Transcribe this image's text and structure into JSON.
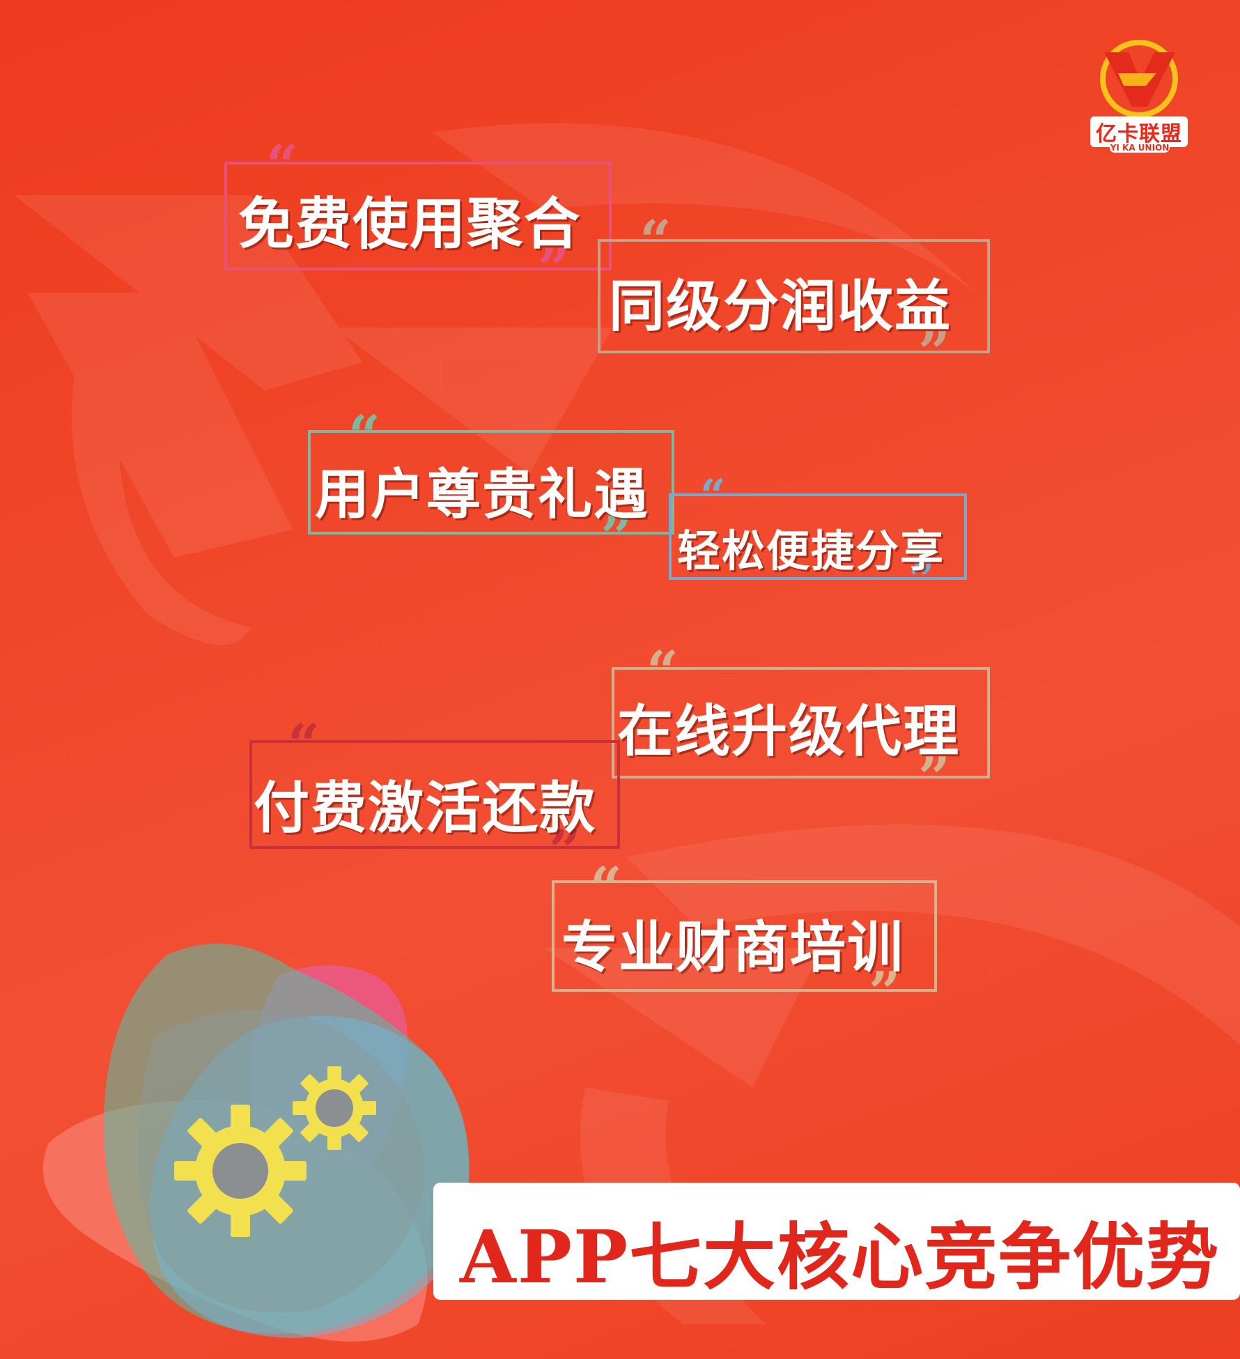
{
  "brand": {
    "name_cn": "亿卡联盟",
    "name_en": "YI KA UNION",
    "primary_color": "#e42b1b",
    "accent_yellow": "#f7c21a"
  },
  "features": [
    {
      "label": "免费使用聚合",
      "frame_color": "#e8517a"
    },
    {
      "label": "同级分润收益",
      "frame_color": "#c8a088"
    },
    {
      "label": "用户尊贵礼遇",
      "frame_color": "#7fb8a0"
    },
    {
      "label": "轻松便捷分享",
      "frame_color": "#7aa9d0"
    },
    {
      "label": "在线升级代理",
      "frame_color": "#d6b08c"
    },
    {
      "label": "付费激活还款",
      "frame_color": "#c8303a"
    },
    {
      "label": "专业财商培训",
      "frame_color": "#d9b48e"
    }
  ],
  "banner": {
    "title": "APP七大核心竞争优势"
  },
  "decor": {
    "gears_icon": "gears-icon",
    "blob_colors": [
      "#59d3b4",
      "#ea5a8a",
      "#60c4e2"
    ]
  }
}
